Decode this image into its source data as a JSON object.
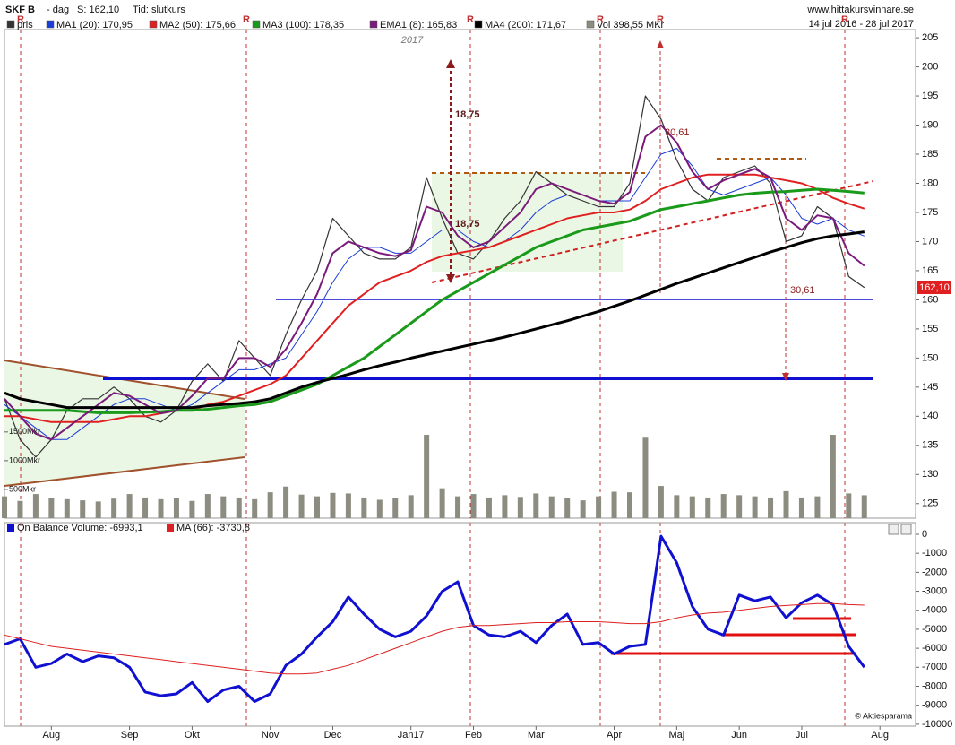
{
  "chart_data": [
    {
      "type": "line",
      "title": "SKF B",
      "subtitle": "- dag",
      "info": [
        "S: 162,10",
        "Tid: slutkurs"
      ],
      "source": "www.hittakursvinnare.se",
      "date_range": "14 jul 2016 - 28 jul 2017",
      "year_label": "2017",
      "last_price_label": "162,10",
      "annotations": [
        "18,75",
        "18,75",
        "30,61",
        "30,61"
      ],
      "markers": [
        "R",
        "R",
        "R",
        "R",
        "R",
        "R"
      ],
      "categories": [
        null,
        null,
        null,
        "Aug",
        null,
        null,
        null,
        null,
        "Sep",
        null,
        null,
        null,
        "Okt",
        null,
        null,
        null,
        null,
        "Nov",
        null,
        null,
        null,
        "Dec",
        null,
        null,
        null,
        null,
        "Jan17",
        null,
        null,
        null,
        "Feb",
        null,
        null,
        null,
        "Mar",
        null,
        null,
        null,
        null,
        "Apr",
        null,
        null,
        null,
        "Maj",
        null,
        null,
        null,
        "Jun",
        null,
        null,
        null,
        "Jul",
        null,
        null,
        null,
        null,
        "Aug"
      ],
      "ylim": [
        122.5,
        206.4
      ],
      "yticks": [
        125,
        130,
        135,
        140,
        145,
        150,
        155,
        160,
        165,
        170,
        175,
        180,
        185,
        190,
        195,
        200,
        205
      ],
      "y2lim": [
        0,
        8500
      ],
      "y2ticks": [
        {
          "value": 500,
          "label": "500Mkr"
        },
        {
          "value": 1000,
          "label": "1000Mkr"
        },
        {
          "value": 1500,
          "label": "1500Mkr"
        }
      ],
      "grid": false,
      "series": [
        {
          "name": "pris",
          "color": "#333333",
          "type": "line",
          "values": [
            143,
            136,
            133,
            136,
            141,
            143,
            143,
            145,
            143,
            140,
            139,
            141,
            146,
            149,
            146,
            153,
            150,
            147,
            154,
            160,
            165,
            174,
            171,
            168,
            167,
            167,
            169,
            181,
            174,
            168,
            167,
            170,
            174,
            177,
            182,
            180,
            178,
            177,
            176,
            176,
            180,
            195,
            191,
            184,
            179,
            177,
            181,
            182,
            183,
            180,
            170,
            171,
            176,
            174,
            164,
            162.1,
            null
          ]
        },
        {
          "name": "MA1 (20): 170,95",
          "color": "#1a3cd8",
          "type": "line",
          "values": [
            142,
            140,
            138,
            136,
            136,
            138,
            140,
            142,
            143,
            143,
            142,
            141,
            142,
            144,
            146,
            148,
            148,
            149,
            150,
            154,
            158,
            163,
            167,
            169,
            169,
            168,
            168,
            170,
            172,
            172,
            170,
            169,
            170,
            172,
            175,
            177,
            178,
            178,
            177,
            177,
            177,
            181,
            185,
            186,
            183,
            179,
            178,
            179,
            180,
            181,
            178,
            174,
            173,
            174,
            172,
            170.95,
            null
          ]
        },
        {
          "name": "MA2 (50): 175,66",
          "color": "#e02020",
          "type": "line",
          "values": [
            140,
            140,
            139.5,
            139,
            139,
            139,
            139,
            139.5,
            140,
            140,
            140.5,
            141,
            141,
            142,
            142.5,
            143.5,
            144.5,
            145.5,
            147,
            150,
            153,
            156,
            159,
            161,
            163,
            164,
            165,
            166.5,
            167.5,
            168,
            168.5,
            169,
            170,
            171,
            172,
            173,
            174,
            174.5,
            175,
            175,
            175.5,
            177,
            179,
            180,
            181,
            181.5,
            181.5,
            181.5,
            181.5,
            181,
            180.5,
            180,
            179,
            177.5,
            176.5,
            175.66,
            null
          ]
        },
        {
          "name": "MA3 (100): 178,35",
          "color": "#1a9a1a",
          "type": "line",
          "values": [
            141,
            141,
            141,
            141,
            141,
            140.8,
            140.6,
            140.6,
            140.6,
            140.7,
            140.8,
            141,
            141,
            141.2,
            141.5,
            141.8,
            142,
            142.5,
            143.5,
            144.5,
            145.5,
            147,
            148.5,
            150,
            152,
            154,
            156,
            158,
            160,
            161.5,
            163,
            164.5,
            166,
            167.5,
            169,
            170,
            171,
            172,
            172.5,
            173,
            173.5,
            174.5,
            175.5,
            176,
            176.5,
            177,
            177.5,
            178,
            178.3,
            178.5,
            178.6,
            178.8,
            179,
            178.8,
            178.6,
            178.35,
            null
          ]
        },
        {
          "name": "EMA1 (8): 165,83",
          "color": "#7a1a7a",
          "type": "line",
          "values": [
            143,
            140,
            137,
            136,
            138,
            140,
            142,
            144,
            143.5,
            142,
            140.5,
            141,
            143.5,
            146.5,
            146.5,
            150,
            150,
            148.5,
            151.5,
            156,
            161,
            168,
            170,
            169,
            168,
            167.5,
            168.5,
            176,
            175,
            171,
            169,
            170,
            172.5,
            175,
            179,
            180,
            179,
            178,
            177,
            176.5,
            178.5,
            188,
            190,
            187,
            182,
            179,
            180.5,
            181.5,
            182.5,
            181,
            174,
            172,
            174.5,
            174,
            168,
            165.83,
            null
          ]
        },
        {
          "name": "MA4 (200): 171,67",
          "color": "#000000",
          "type": "line",
          "values": [
            144,
            143,
            142.5,
            142,
            141.5,
            141.5,
            141.5,
            141.5,
            141.5,
            141.5,
            141.5,
            141.5,
            141.5,
            141.8,
            142,
            142.2,
            142.5,
            143,
            144,
            145,
            145.8,
            146.5,
            147.2,
            148,
            148.7,
            149.3,
            150,
            150.6,
            151.2,
            151.8,
            152.4,
            153,
            153.6,
            154.3,
            155,
            155.7,
            156.4,
            157.2,
            158,
            158.9,
            159.8,
            160.8,
            161.8,
            162.8,
            163.7,
            164.6,
            165.5,
            166.4,
            167.3,
            168.2,
            169,
            169.8,
            170.5,
            171,
            171.3,
            171.67,
            null
          ]
        },
        {
          "name": "Vol 398,55 MKr",
          "color": "#8c8c80",
          "type": "bar",
          "axis": "y2",
          "values": [
            380,
            300,
            420,
            350,
            330,
            310,
            290,
            340,
            420,
            360,
            330,
            350,
            300,
            420,
            380,
            360,
            330,
            450,
            550,
            410,
            380,
            440,
            430,
            360,
            320,
            350,
            400,
            1450,
            520,
            380,
            420,
            360,
            400,
            370,
            430,
            380,
            350,
            310,
            380,
            460,
            450,
            1400,
            560,
            400,
            380,
            360,
            420,
            400,
            380,
            360,
            470,
            360,
            380,
            1450,
            430,
            398.55,
            null
          ]
        }
      ]
    },
    {
      "type": "line",
      "credit": "© Aktiesparama",
      "ylim": [
        -10100,
        613
      ],
      "yticks": [
        0,
        -1000,
        -2000,
        -3000,
        -4000,
        -5000,
        -6000,
        -7000,
        -8000,
        -9000,
        -10000
      ],
      "series": [
        {
          "name": "On Balance Volume: -6993,1",
          "color": "#1010d0",
          "values": [
            -5800,
            -5500,
            -7000,
            -6800,
            -6300,
            -6700,
            -6400,
            -6500,
            -7000,
            -8300,
            -8500,
            -8400,
            -7800,
            -8800,
            -8200,
            -8000,
            -8800,
            -8400,
            -6900,
            -6300,
            -5400,
            -4600,
            -3300,
            -4200,
            -5000,
            -5400,
            -5100,
            -4300,
            -3000,
            -2500,
            -4800,
            -5300,
            -5400,
            -5100,
            -5700,
            -4800,
            -4200,
            -5800,
            -5700,
            -6300,
            -5900,
            -5800,
            -100,
            -1500,
            -3800,
            -5000,
            -5300,
            -3200,
            -3500,
            -3300,
            -4400,
            -3600,
            -3200,
            -3700,
            -5900,
            -6993.1,
            null
          ]
        },
        {
          "name": "MA (66): -3730,8",
          "color": "#dd2020",
          "values": [
            -5300,
            -5500,
            -5700,
            -5900,
            -6000,
            -6100,
            -6200,
            -6300,
            -6400,
            -6500,
            -6600,
            -6700,
            -6800,
            -6900,
            -7000,
            -7100,
            -7200,
            -7300,
            -7350,
            -7350,
            -7300,
            -7100,
            -6900,
            -6600,
            -6300,
            -6000,
            -5700,
            -5400,
            -5100,
            -4900,
            -4800,
            -4800,
            -4750,
            -4700,
            -4650,
            -4650,
            -4600,
            -4600,
            -4600,
            -4650,
            -4700,
            -4700,
            -4600,
            -4400,
            -4250,
            -4150,
            -4100,
            -4000,
            -3900,
            -3800,
            -3750,
            -3700,
            -3650,
            -3650,
            -3700,
            -3730.8,
            null
          ]
        }
      ]
    }
  ]
}
